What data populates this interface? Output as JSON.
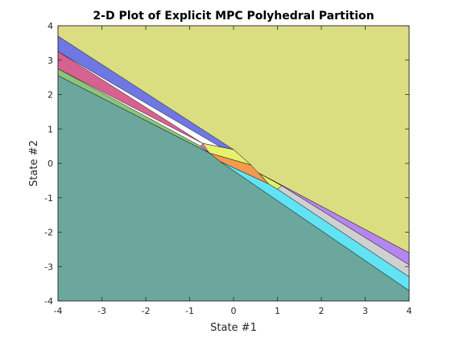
{
  "chart_data": {
    "type": "polyhedral-partition",
    "title": "2-D Plot of Explicit MPC Polyhedral Partition",
    "xlabel": "State #1",
    "ylabel": "State #2",
    "xlim": [
      -4,
      4
    ],
    "ylim": [
      -4,
      4
    ],
    "xticks": [
      -4,
      -3,
      -2,
      -1,
      0,
      1,
      2,
      3,
      4
    ],
    "yticks": [
      -4,
      -3,
      -2,
      -1,
      0,
      1,
      2,
      3,
      4
    ],
    "grid": false,
    "legend": "none",
    "regions": [
      {
        "color": "#dadd80",
        "vertices": [
          [
            -4,
            3.7
          ],
          [
            -4,
            4
          ],
          [
            4,
            4
          ],
          [
            4,
            -2.6
          ],
          [
            0.6,
            -0.3
          ]
        ]
      },
      {
        "color": "#6f77e3",
        "vertices": [
          [
            -4,
            3.7
          ],
          [
            0.0,
            0.4
          ],
          [
            0.4,
            -0.05
          ],
          [
            -4,
            3.25
          ]
        ]
      },
      {
        "color": "#d8628f",
        "vertices": [
          [
            -4,
            3.25
          ],
          [
            -0.7,
            0.58
          ],
          [
            -4,
            2.75
          ]
        ]
      },
      {
        "color": "#f26be3",
        "vertices": [
          [
            -0.7,
            0.58
          ],
          [
            -0.75,
            0.5
          ],
          [
            -0.55,
            0.3
          ],
          [
            0.0,
            0.4
          ]
        ]
      },
      {
        "color": "#8cc47b",
        "vertices": [
          [
            -4,
            2.75
          ],
          [
            -0.75,
            0.5
          ],
          [
            -0.55,
            0.3
          ],
          [
            -4,
            2.55
          ]
        ]
      },
      {
        "color": "#e6f06d",
        "vertices": [
          [
            -0.7,
            0.58
          ],
          [
            0.0,
            0.4
          ],
          [
            0.4,
            -0.05
          ],
          [
            -0.55,
            0.3
          ]
        ]
      },
      {
        "color": "#f29a4e",
        "vertices": [
          [
            -0.55,
            0.3
          ],
          [
            0.4,
            -0.05
          ],
          [
            0.8,
            -0.6
          ],
          [
            -0.3,
            0.05
          ]
        ]
      },
      {
        "color": "#e6f06d",
        "vertices": [
          [
            0.6,
            -0.3
          ],
          [
            1.1,
            -0.65
          ],
          [
            1.0,
            -0.75
          ],
          [
            0.8,
            -0.6
          ]
        ]
      },
      {
        "color": "#d0d0d0",
        "vertices": [
          [
            1.1,
            -0.65
          ],
          [
            4,
            -2.95
          ],
          [
            4,
            -3.3
          ],
          [
            1.0,
            -0.75
          ]
        ]
      },
      {
        "color": "#b586ef",
        "vertices": [
          [
            0.6,
            -0.3
          ],
          [
            4,
            -2.6
          ],
          [
            4,
            -2.95
          ],
          [
            1.1,
            -0.65
          ]
        ]
      },
      {
        "color": "#62e3f3",
        "vertices": [
          [
            -0.3,
            0.05
          ],
          [
            0.8,
            -0.6
          ],
          [
            1.0,
            -0.75
          ],
          [
            4,
            -3.3
          ],
          [
            4,
            -3.7
          ]
        ]
      },
      {
        "color": "#6ca79d",
        "vertices": [
          [
            -4,
            2.55
          ],
          [
            -0.55,
            0.3
          ],
          [
            -0.3,
            0.05
          ],
          [
            4,
            -3.7
          ],
          [
            4,
            -4
          ],
          [
            -4,
            -4
          ]
        ]
      }
    ]
  }
}
